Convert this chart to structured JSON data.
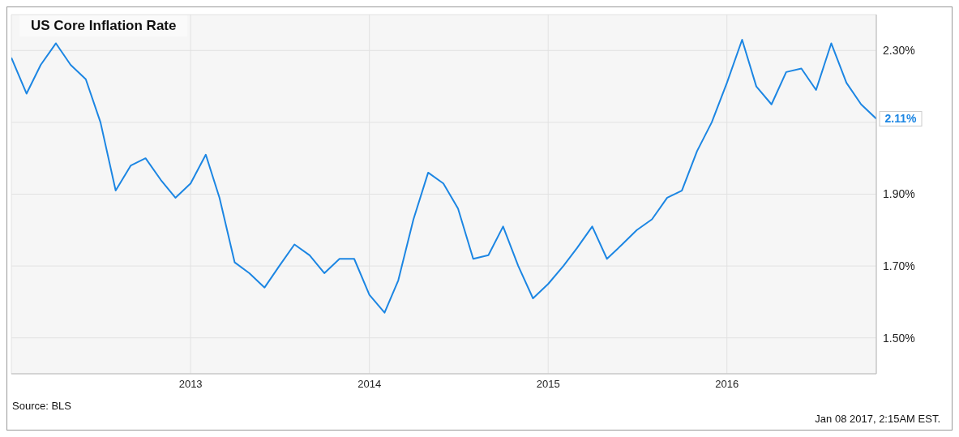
{
  "chart_data": {
    "type": "line",
    "title": "US Core Inflation Rate",
    "x": [
      "2012-01",
      "2012-02",
      "2012-03",
      "2012-04",
      "2012-05",
      "2012-06",
      "2012-07",
      "2012-08",
      "2012-09",
      "2012-10",
      "2012-11",
      "2012-12",
      "2013-01",
      "2013-02",
      "2013-03",
      "2013-04",
      "2013-05",
      "2013-06",
      "2013-07",
      "2013-08",
      "2013-09",
      "2013-10",
      "2013-11",
      "2013-12",
      "2014-01",
      "2014-02",
      "2014-03",
      "2014-04",
      "2014-05",
      "2014-06",
      "2014-07",
      "2014-08",
      "2014-09",
      "2014-10",
      "2014-11",
      "2014-12",
      "2015-01",
      "2015-02",
      "2015-03",
      "2015-04",
      "2015-05",
      "2015-06",
      "2015-07",
      "2015-08",
      "2015-09",
      "2015-10",
      "2015-11",
      "2015-12",
      "2016-01",
      "2016-02",
      "2016-03",
      "2016-04",
      "2016-05",
      "2016-06",
      "2016-07",
      "2016-08",
      "2016-09",
      "2016-10",
      "2016-11"
    ],
    "series": [
      {
        "color": "#1c86e3",
        "values": [
          2.28,
          2.18,
          2.26,
          2.32,
          2.26,
          2.22,
          2.1,
          1.91,
          1.98,
          2.0,
          1.94,
          1.89,
          1.93,
          2.01,
          1.89,
          1.71,
          1.68,
          1.64,
          1.7,
          1.76,
          1.73,
          1.68,
          1.72,
          1.72,
          1.62,
          1.57,
          1.66,
          1.83,
          1.96,
          1.93,
          1.86,
          1.72,
          1.73,
          1.81,
          1.7,
          1.61,
          1.65,
          1.7,
          1.75,
          1.81,
          1.72,
          1.76,
          1.8,
          1.83,
          1.89,
          1.91,
          2.02,
          2.1,
          2.21,
          2.33,
          2.2,
          2.15,
          2.24,
          2.25,
          2.19,
          2.32,
          2.21,
          2.15,
          2.11
        ]
      }
    ],
    "xlim": [
      "2012-01",
      "2016-11"
    ],
    "xticks": [
      "2013",
      "2014",
      "2015",
      "2016"
    ],
    "ylim": [
      1.4,
      2.4
    ],
    "yticks": [
      {
        "value": 1.5,
        "label": "1.50%"
      },
      {
        "value": 1.7,
        "label": "1.70%"
      },
      {
        "value": 1.9,
        "label": "1.90%"
      },
      {
        "value": 2.1,
        "label": null
      },
      {
        "value": 2.3,
        "label": "2.30%"
      }
    ],
    "grid": true,
    "marker": "none",
    "line_style": "solid",
    "annotations": [
      "Source: BLS",
      "Jan 08 2017, 2:15AM EST.",
      {
        "text": "2.11%",
        "x": "2016-11",
        "y": 2.11
      }
    ]
  }
}
